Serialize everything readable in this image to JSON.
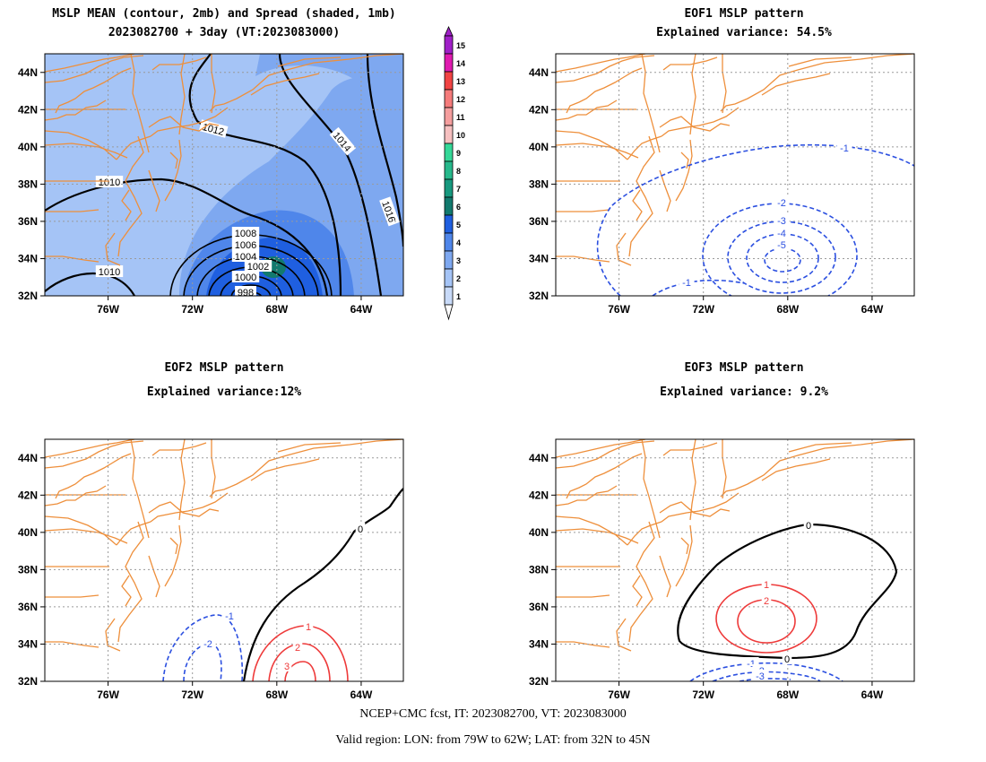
{
  "panels": [
    {
      "title1": "MSLP MEAN (contour, 2mb) and Spread (shaded, 1mb)",
      "title2": "2023082700 + 3day (VT:2023083000)"
    },
    {
      "title1": "EOF1 MSLP pattern",
      "title2": "Explained variance: 54.5%"
    },
    {
      "title1": "EOF2 MSLP pattern",
      "title2": "Explained variance:12%"
    },
    {
      "title1": "EOF3 MSLP pattern",
      "title2": "Explained variance: 9.2%"
    }
  ],
  "footer": {
    "line1": "NCEP+CMC fcst, IT: 2023082700, VT: 2023083000",
    "line2": "Valid region: LON: from 79W to 62W; LAT: from 32N to 45N"
  },
  "colors": {
    "coast": "#ee8f3b",
    "grid": "#9a9a9a",
    "positive_contour": "#ee3a3a",
    "negative_contour": "#2b4fe0",
    "zero_contour": "#000000"
  },
  "chart_data": [
    {
      "type": "heatmap",
      "name": "mslp_mean_and_spread",
      "x_ticks": [
        "76W",
        "72W",
        "68W",
        "64W"
      ],
      "y_ticks": [
        "44N",
        "42N",
        "40N",
        "38N",
        "36N",
        "34N",
        "32N"
      ],
      "xlim": [
        -79,
        -62
      ],
      "ylim": [
        32,
        45
      ],
      "grid": true,
      "colorbar": {
        "levels": [
          "1",
          "2",
          "3",
          "4",
          "5",
          "6",
          "7",
          "8",
          "9",
          "10",
          "11",
          "12",
          "13",
          "14",
          "15"
        ],
        "colors": [
          "#c8daf8",
          "#a5c4f6",
          "#7ea8f0",
          "#4f86ea",
          "#1f5fe0",
          "#127a6e",
          "#17997f",
          "#27b98c",
          "#35d898",
          "#f6c0c0",
          "#f59e9e",
          "#f57b7b",
          "#f14343",
          "#e01bb0",
          "#a020c8"
        ]
      },
      "shaded_spread_regions": [
        {
          "level": 1,
          "color": "#a5c4f6",
          "label": "1-2"
        },
        {
          "level": 2,
          "color": "#7ea8f0",
          "label": "2-3"
        },
        {
          "level": 3,
          "color": "#4f86ea",
          "label": "3-4"
        },
        {
          "level": 4,
          "color": "#1f5fe0",
          "label": "4-5"
        },
        {
          "level": 5,
          "color": "#127a6e",
          "label": "5-6"
        }
      ],
      "contour_labels": [
        "1014",
        "1012",
        "1010",
        "1016",
        "1008",
        "1006",
        "1004",
        "1002",
        "1000",
        "998",
        "1010"
      ]
    },
    {
      "type": "heatmap",
      "name": "eof1",
      "x_ticks": [
        "76W",
        "72W",
        "68W",
        "64W"
      ],
      "y_ticks": [
        "44N",
        "42N",
        "40N",
        "38N",
        "36N",
        "34N",
        "32N"
      ],
      "xlim": [
        -79,
        -62
      ],
      "ylim": [
        32,
        45
      ],
      "grid": true,
      "contour_labels": [
        "-1",
        "-2",
        "-3",
        "-4",
        "-5",
        "-1"
      ]
    },
    {
      "type": "heatmap",
      "name": "eof2",
      "x_ticks": [
        "76W",
        "72W",
        "68W",
        "64W"
      ],
      "y_ticks": [
        "44N",
        "42N",
        "40N",
        "38N",
        "36N",
        "34N",
        "32N"
      ],
      "xlim": [
        -79,
        -62
      ],
      "ylim": [
        32,
        45
      ],
      "grid": true,
      "contour_labels": [
        "-1",
        "-2",
        "0",
        "1",
        "2",
        "3"
      ]
    },
    {
      "type": "heatmap",
      "name": "eof3",
      "x_ticks": [
        "76W",
        "72W",
        "68W",
        "64W"
      ],
      "y_ticks": [
        "44N",
        "42N",
        "40N",
        "38N",
        "36N",
        "34N",
        "32N"
      ],
      "xlim": [
        -79,
        -62
      ],
      "ylim": [
        32,
        45
      ],
      "grid": true,
      "contour_labels": [
        "0",
        "1",
        "2",
        "0",
        "-1",
        "-2",
        "-3"
      ]
    }
  ]
}
